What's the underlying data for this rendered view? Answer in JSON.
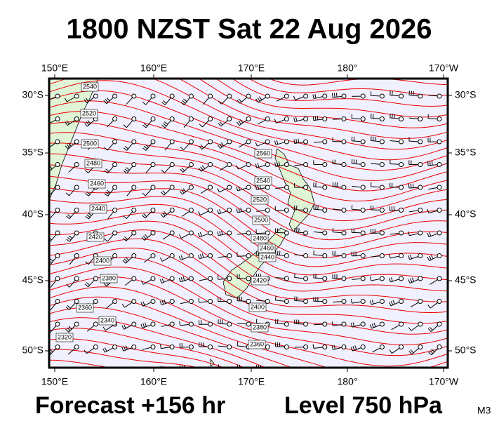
{
  "title": "1800 NZST Sat 22 Aug 2026",
  "x_labels_top": [
    "150°E",
    "160°E",
    "170°E",
    "180°",
    "170°W"
  ],
  "x_labels_bottom": [
    "150°E",
    "160°E",
    "170°E",
    "180°",
    "170°W"
  ],
  "y_labels_left": [
    "30°S",
    "35°S",
    "40°S",
    "45°S",
    "50°S"
  ],
  "y_labels_right": [
    "30°S",
    "35°S",
    "40°S",
    "45°S",
    "50°S"
  ],
  "contour_labels": [
    "2540",
    "2520",
    "2500",
    "2480",
    "2460",
    "2440",
    "2420",
    "2400",
    "2380",
    "2360",
    "2340",
    "2320",
    "2560",
    "2540",
    "2520",
    "2500",
    "2480",
    "2460",
    "2440",
    "2420",
    "2400",
    "2380",
    "2360"
  ],
  "footer": {
    "forecast": "Forecast +156 hr",
    "level": "Level 750 hPa",
    "model": "M3"
  }
}
